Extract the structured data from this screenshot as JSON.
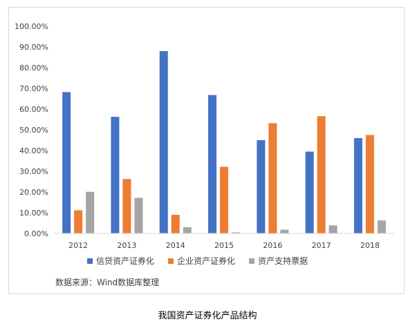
{
  "chart_data": {
    "type": "bar",
    "categories": [
      "2012",
      "2013",
      "2014",
      "2015",
      "2016",
      "2017",
      "2018"
    ],
    "series": [
      {
        "name": "信贷资产证券化",
        "color": "#4472c4",
        "values": [
          0.682,
          0.563,
          0.88,
          0.668,
          0.45,
          0.395,
          0.46
        ]
      },
      {
        "name": "企业资产证券化",
        "color": "#ed7d31",
        "values": [
          0.112,
          0.263,
          0.09,
          0.322,
          0.532,
          0.566,
          0.475
        ]
      },
      {
        "name": "资产支持票据",
        "color": "#a5a5a5",
        "values": [
          0.201,
          0.172,
          0.03,
          0.005,
          0.018,
          0.039,
          0.063
        ]
      }
    ],
    "ylim": [
      0,
      1.0
    ],
    "yticks": [
      "0.00%",
      "10.00%",
      "20.00%",
      "30.00%",
      "40.00%",
      "50.00%",
      "60.00%",
      "70.00%",
      "80.00%",
      "90.00%",
      "100.00%"
    ],
    "grid": false,
    "legend_position": "bottom"
  },
  "source_note": "数据来源：Wind数据库整理",
  "caption": "我国资产证券化产品结构"
}
